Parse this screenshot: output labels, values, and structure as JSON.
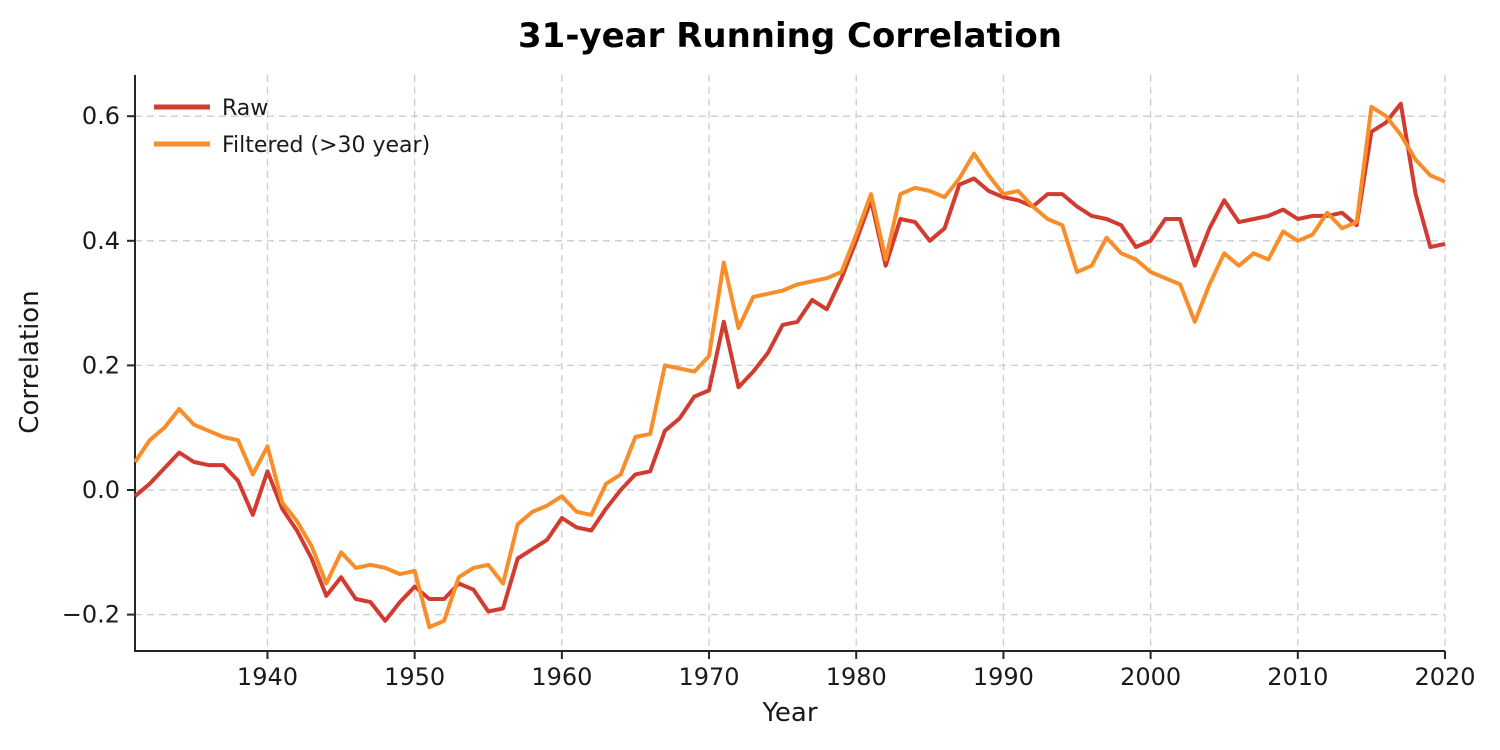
{
  "title": "31-year Running Correlation",
  "chart_data": {
    "type": "line",
    "title": "31-year Running Correlation",
    "xlabel": "Year",
    "ylabel": "Correlation",
    "xlim": [
      1931,
      2020
    ],
    "ylim": [
      -0.258,
      0.666
    ],
    "xticks": [
      1940,
      1950,
      1960,
      1970,
      1980,
      1990,
      2000,
      2010,
      2020
    ],
    "yticks": [
      -0.2,
      0.0,
      0.2,
      0.4,
      0.6
    ],
    "grid": true,
    "grid_style": "dashed",
    "grid_color": "#cccccc",
    "spine_color": "#262626",
    "legend_position": "upper left",
    "x_start_year": 1931,
    "x": [
      1931,
      1932,
      1933,
      1934,
      1935,
      1936,
      1937,
      1938,
      1939,
      1940,
      1941,
      1942,
      1943,
      1944,
      1945,
      1946,
      1947,
      1948,
      1949,
      1950,
      1951,
      1952,
      1953,
      1954,
      1955,
      1956,
      1957,
      1958,
      1959,
      1960,
      1961,
      1962,
      1963,
      1964,
      1965,
      1966,
      1967,
      1968,
      1969,
      1970,
      1971,
      1972,
      1973,
      1974,
      1975,
      1976,
      1977,
      1978,
      1979,
      1980,
      1981,
      1982,
      1983,
      1984,
      1985,
      1986,
      1987,
      1988,
      1989,
      1990,
      1991,
      1992,
      1993,
      1994,
      1995,
      1996,
      1997,
      1998,
      1999,
      2000,
      2001,
      2002,
      2003,
      2004,
      2005,
      2006,
      2007,
      2008,
      2009,
      2010,
      2011,
      2012,
      2013,
      2014,
      2015,
      2016,
      2017,
      2018,
      2019,
      2020
    ],
    "series": [
      {
        "name": "Raw",
        "color": "#d13b30",
        "values": [
          -0.01,
          0.01,
          0.035,
          0.06,
          0.045,
          0.04,
          0.04,
          0.015,
          -0.04,
          0.03,
          -0.03,
          -0.065,
          -0.11,
          -0.17,
          -0.14,
          -0.175,
          -0.18,
          -0.21,
          -0.18,
          -0.155,
          -0.175,
          -0.175,
          -0.15,
          -0.16,
          -0.195,
          -0.19,
          -0.11,
          -0.095,
          -0.08,
          -0.045,
          -0.06,
          -0.065,
          -0.03,
          0.0,
          0.025,
          0.03,
          0.095,
          0.115,
          0.15,
          0.16,
          0.27,
          0.165,
          0.19,
          0.22,
          0.265,
          0.27,
          0.305,
          0.29,
          0.34,
          0.4,
          0.465,
          0.36,
          0.435,
          0.43,
          0.4,
          0.42,
          0.49,
          0.5,
          0.48,
          0.47,
          0.465,
          0.455,
          0.475,
          0.475,
          0.455,
          0.44,
          0.435,
          0.425,
          0.39,
          0.4,
          0.435,
          0.435,
          0.36,
          0.42,
          0.465,
          0.43,
          0.435,
          0.44,
          0.45,
          0.435,
          0.44,
          0.44,
          0.445,
          0.425,
          0.575,
          0.59,
          0.62,
          0.475,
          0.39,
          0.395
        ]
      },
      {
        "name": "Filtered (>30 year)",
        "color": "#f88e2a",
        "values": [
          0.045,
          0.08,
          0.1,
          0.13,
          0.105,
          0.095,
          0.085,
          0.08,
          0.025,
          0.07,
          -0.02,
          -0.05,
          -0.09,
          -0.15,
          -0.1,
          -0.125,
          -0.12,
          -0.125,
          -0.135,
          -0.13,
          -0.22,
          -0.21,
          -0.14,
          -0.125,
          -0.12,
          -0.15,
          -0.055,
          -0.035,
          -0.025,
          -0.01,
          -0.035,
          -0.04,
          0.01,
          0.025,
          0.085,
          0.09,
          0.2,
          0.195,
          0.19,
          0.215,
          0.365,
          0.26,
          0.31,
          0.315,
          0.32,
          0.33,
          0.335,
          0.34,
          0.35,
          0.41,
          0.475,
          0.37,
          0.475,
          0.485,
          0.48,
          0.47,
          0.5,
          0.54,
          0.505,
          0.475,
          0.48,
          0.455,
          0.435,
          0.425,
          0.35,
          0.36,
          0.405,
          0.38,
          0.37,
          0.35,
          0.34,
          0.33,
          0.27,
          0.33,
          0.38,
          0.36,
          0.38,
          0.37,
          0.415,
          0.4,
          0.41,
          0.445,
          0.42,
          0.43,
          0.615,
          0.6,
          0.57,
          0.53,
          0.505,
          0.495
        ]
      }
    ]
  }
}
